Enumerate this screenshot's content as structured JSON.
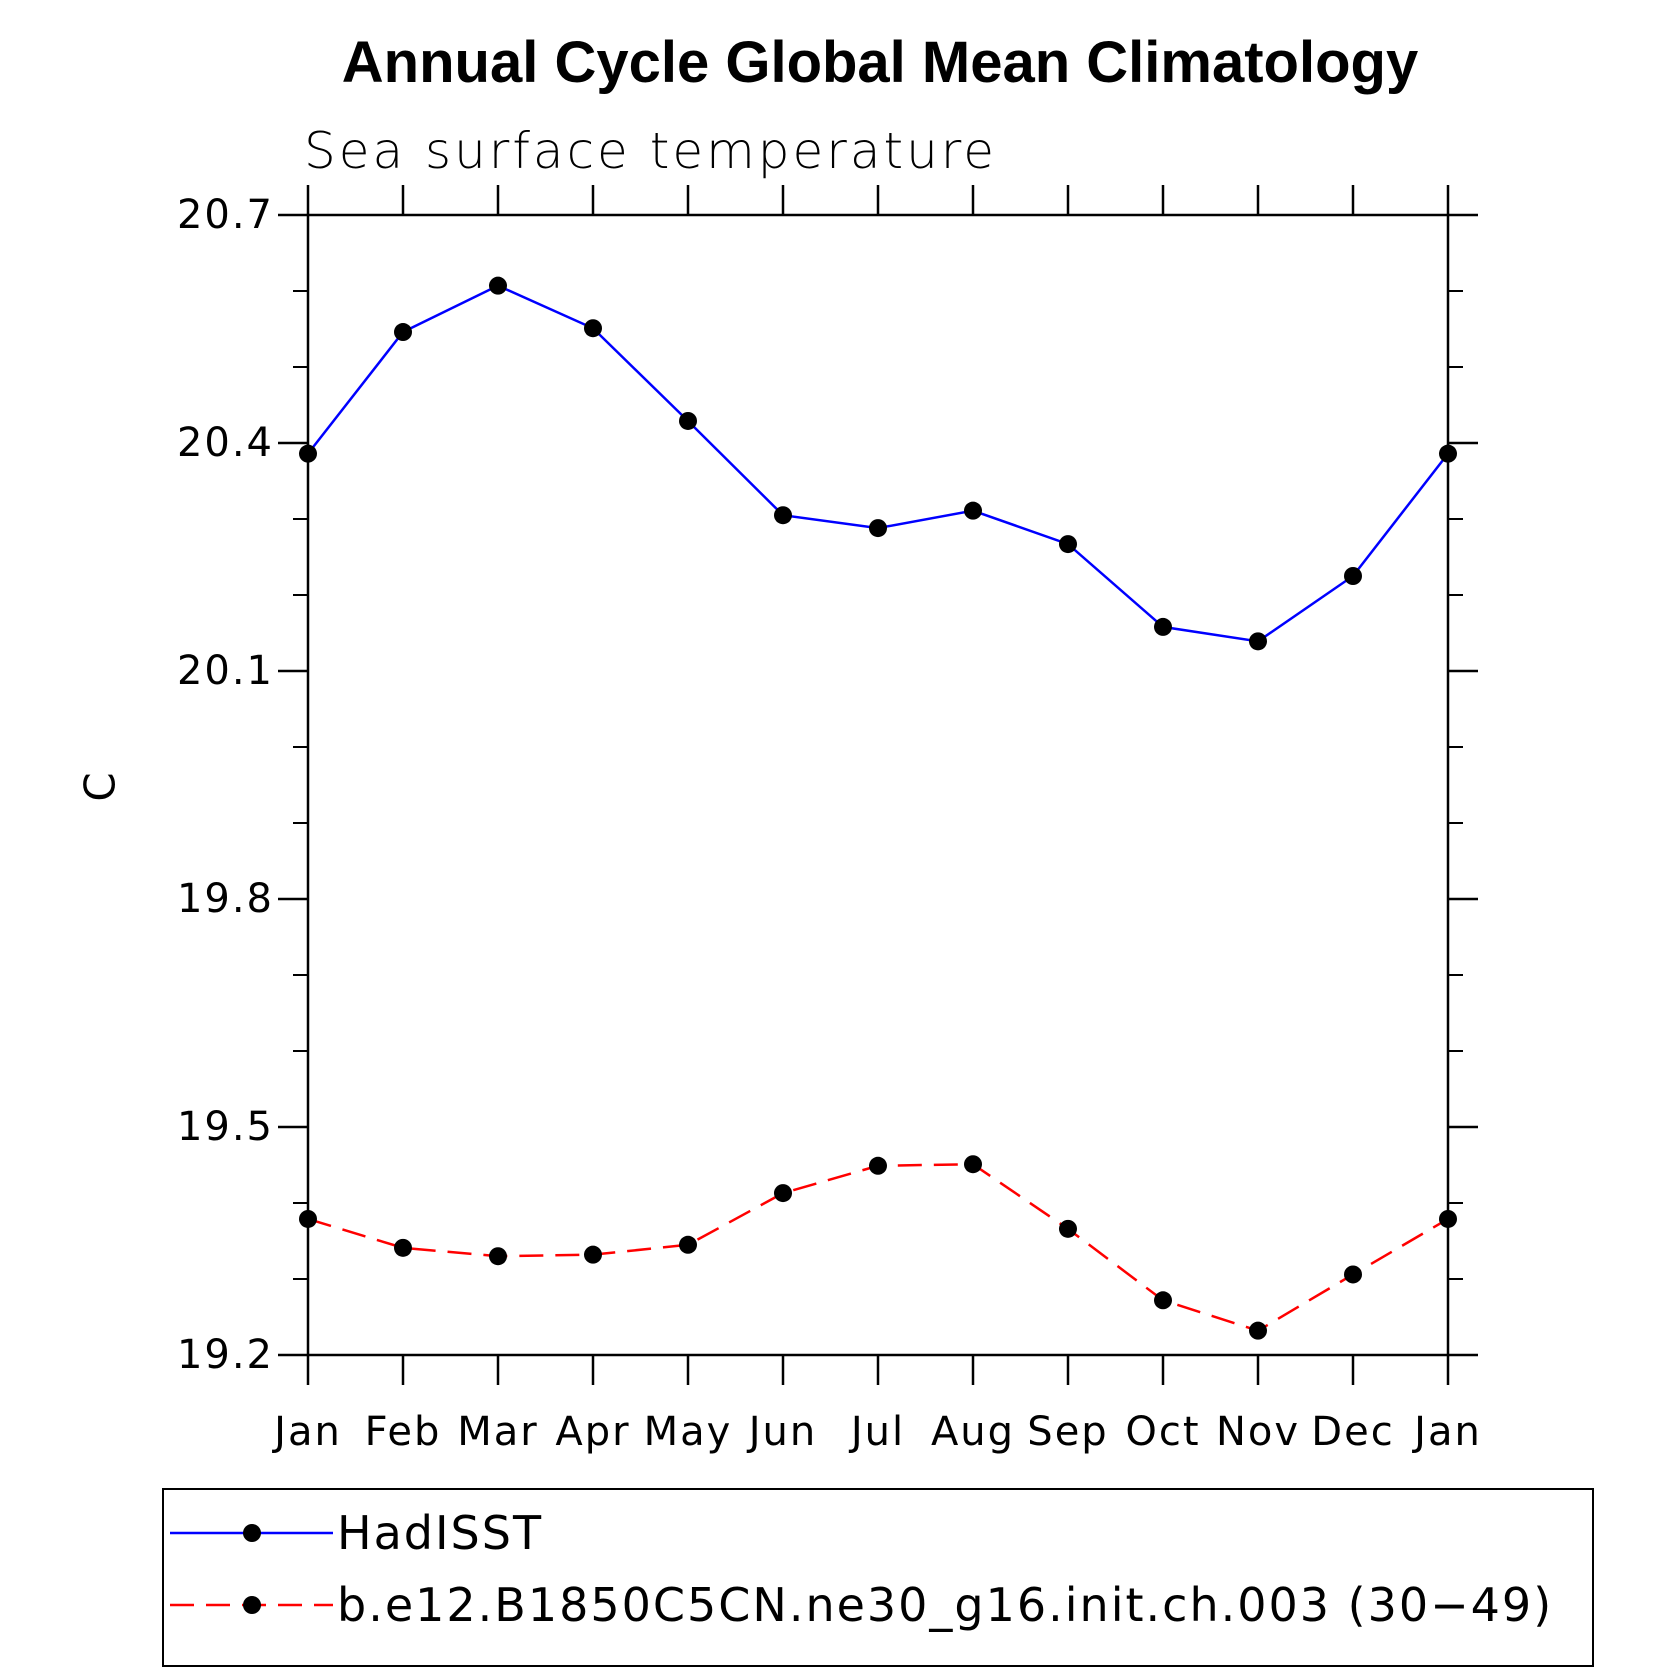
{
  "chart_data": {
    "type": "line",
    "title": "Annual Cycle Global Mean Climatology",
    "subtitle": "Sea surface temperature",
    "xlabel": "",
    "ylabel": "C",
    "ylim": [
      19.2,
      20.7
    ],
    "yticks": [
      "20.7",
      "20.4",
      "20.1",
      "19.8",
      "19.5",
      "19.2"
    ],
    "ytick_values": [
      20.7,
      20.4,
      20.1,
      19.8,
      19.5,
      19.2
    ],
    "yminor_step": 0.1,
    "categories": [
      "Jan",
      "Feb",
      "Mar",
      "Apr",
      "May",
      "Jun",
      "Jul",
      "Aug",
      "Sep",
      "Oct",
      "Nov",
      "Dec",
      "Jan"
    ],
    "series": [
      {
        "name": "HadISST",
        "color": "#0000ff",
        "dash": "solid",
        "values": [
          20.386,
          20.546,
          20.607,
          20.551,
          20.429,
          20.305,
          20.288,
          20.311,
          20.267,
          20.158,
          20.139,
          20.225,
          20.386
        ]
      },
      {
        "name": "b.e12.B1850C5CN.ne30_g16.init.ch.003 (30−49)",
        "color": "#ff0000",
        "dash": "dashed",
        "values": [
          19.379,
          19.341,
          19.33,
          19.332,
          19.345,
          19.413,
          19.449,
          19.451,
          19.366,
          19.272,
          19.232,
          19.306,
          19.379
        ]
      }
    ],
    "legend_position": "bottom"
  }
}
